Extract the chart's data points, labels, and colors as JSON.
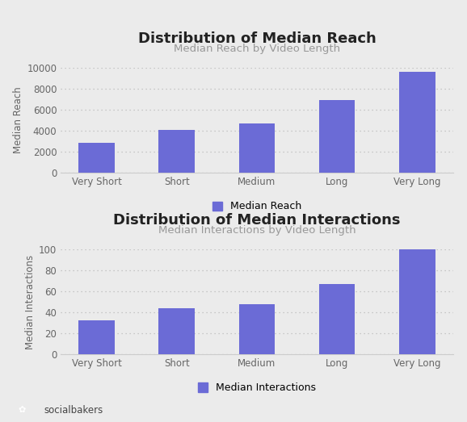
{
  "categories": [
    "Very Short",
    "Short",
    "Medium",
    "Long",
    "Very Long"
  ],
  "reach_values": [
    2900,
    4050,
    4700,
    6900,
    9600
  ],
  "interaction_values": [
    32,
    44,
    48,
    67,
    100
  ],
  "bar_color": "#6B6BD6",
  "background_color": "#EBEBEB",
  "title1": "Distribution of Median Reach",
  "subtitle1": "Median Reach by Video Length",
  "title2": "Distribution of Median Interactions",
  "subtitle2": "Median Interactions by Video Length",
  "ylabel1": "Median Reach",
  "ylabel2": "Median Interactions",
  "legend1": "Median Reach",
  "legend2": "Median Interactions",
  "ylim1": [
    0,
    10000
  ],
  "ylim2": [
    0,
    100
  ],
  "yticks1": [
    0,
    2000,
    4000,
    6000,
    8000,
    10000
  ],
  "yticks2": [
    0,
    20,
    40,
    60,
    80,
    100
  ],
  "grid_color": "#BBBBBB",
  "title_fontsize": 13,
  "subtitle_fontsize": 9.5,
  "tick_fontsize": 8.5,
  "ylabel_fontsize": 8.5,
  "legend_fontsize": 9,
  "brand_text": "socialbakers",
  "brand_color": "#9B2257",
  "spine_color": "#CCCCCC",
  "title_color": "#222222",
  "subtitle_color": "#999999",
  "tick_color": "#666666"
}
